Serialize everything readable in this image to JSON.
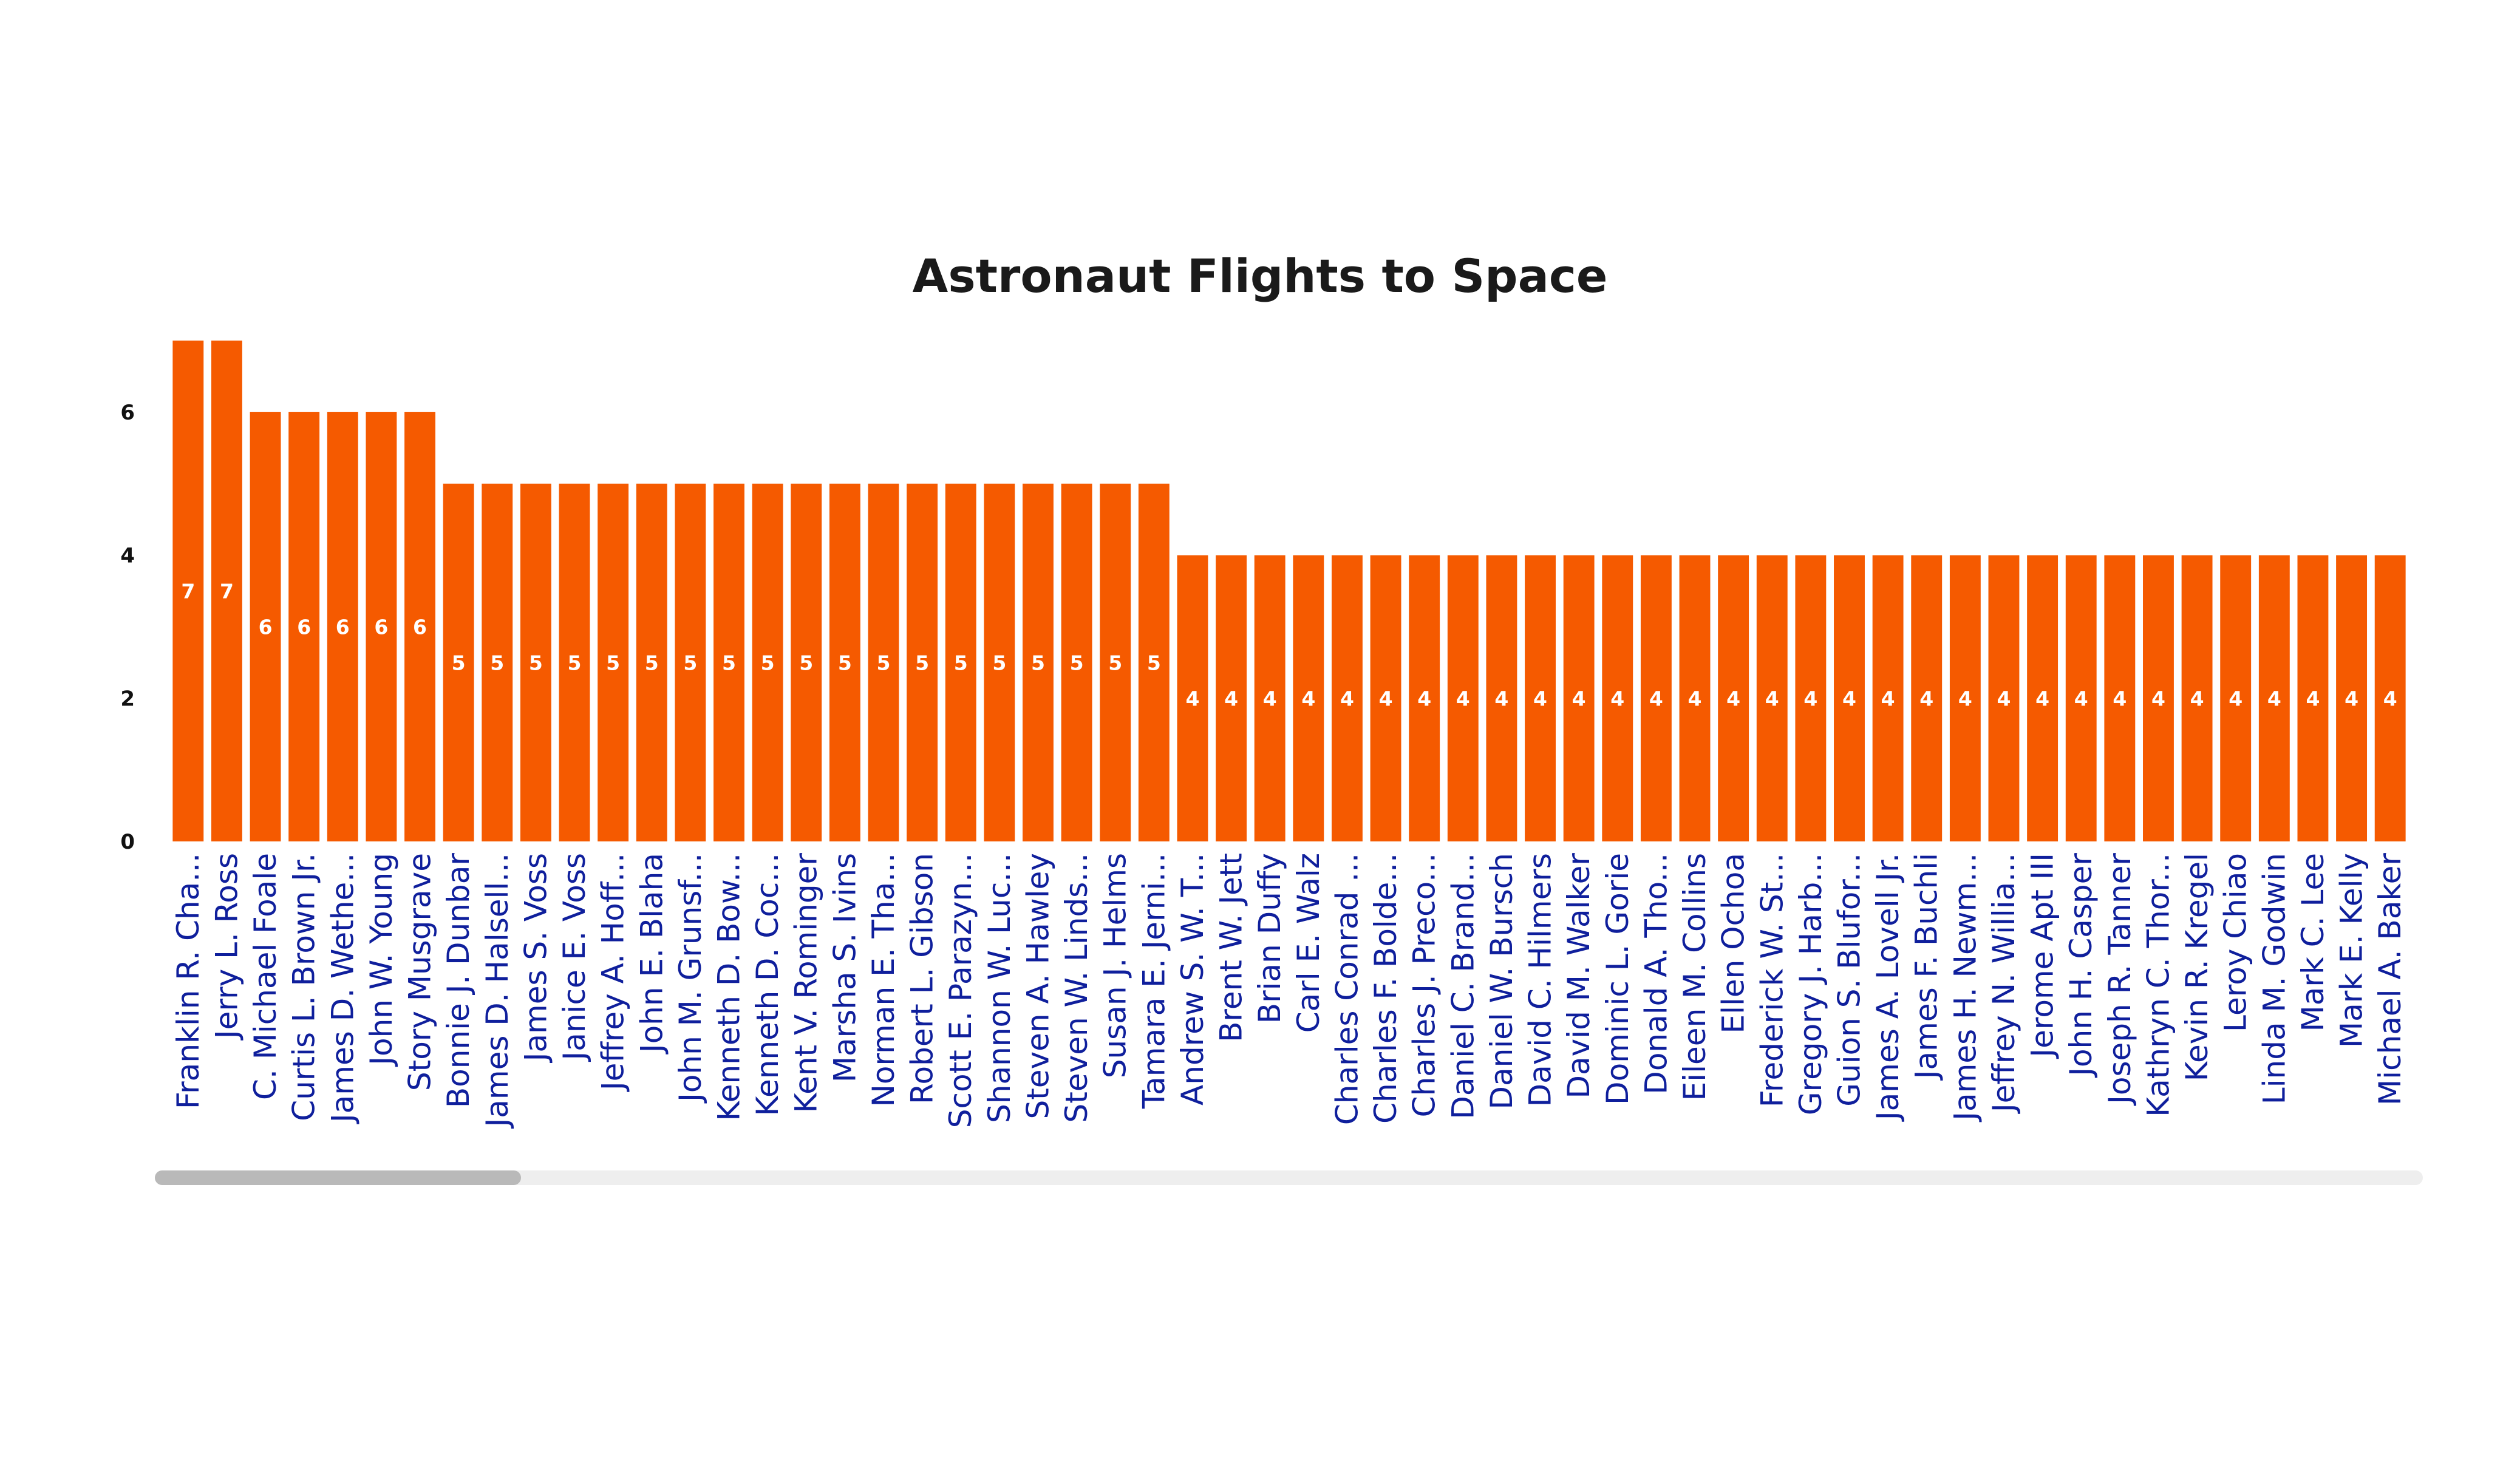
{
  "title": "Astronaut Flights to Space",
  "colors": {
    "bar": "#f55a00",
    "x_tick_label": "#0f1f9c",
    "data_label": "#ffffff",
    "y_tick_label": "#111111"
  },
  "chart_data": {
    "type": "bar",
    "title": "Astronaut Flights to Space",
    "xlabel": "",
    "ylabel": "",
    "ylim": [
      0,
      7
    ],
    "yticks": [
      0,
      2,
      4,
      6
    ],
    "grid": false,
    "legend": "none",
    "categories": [
      "Franklin R. Cha...",
      "Jerry L. Ross",
      "C. Michael Foale",
      "Curtis L. Brown Jr.",
      "James D. Wethe...",
      "John W. Young",
      "Story Musgrave",
      "Bonnie J. Dunbar",
      "James D. Halsell...",
      "James S. Voss",
      "Janice E. Voss",
      "Jeffrey A. Hoff...",
      "John E. Blaha",
      "John M. Grunsf...",
      "Kenneth D. Bow...",
      "Kenneth D. Coc...",
      "Kent V. Rominger",
      "Marsha S. Ivins",
      "Norman E. Tha...",
      "Robert L. Gibson",
      "Scott E. Parazyn...",
      "Shannon W. Luc...",
      "Steven A. Hawley",
      "Steven W. Linds...",
      "Susan J. Helms",
      "Tamara E. Jerni...",
      "Andrew S. W. T...",
      "Brent W. Jett",
      "Brian Duffy",
      "Carl E. Walz",
      "Charles Conrad ...",
      "Charles F. Bolde...",
      "Charles J. Preco...",
      "Daniel C. Brand...",
      "Daniel W. Bursch",
      "David C. Hilmers",
      "David M. Walker",
      "Dominic L. Gorie",
      "Donald A. Tho...",
      "Eileen M. Collins",
      "Ellen Ochoa",
      "Frederick W. St...",
      "Gregory J. Harb...",
      "Guion S. Blufor...",
      "James A. Lovell Jr.",
      "James F. Buchli",
      "James H. Newm...",
      "Jeffrey N. Willia...",
      "Jerome Apt III",
      "John H. Casper",
      "Joseph R. Tanner",
      "Kathryn C. Thor...",
      "Kevin R. Kregel",
      "Leroy Chiao",
      "Linda M. Godwin",
      "Mark C. Lee",
      "Mark E. Kelly",
      "Michael A. Baker"
    ],
    "values": [
      7,
      7,
      6,
      6,
      6,
      6,
      6,
      5,
      5,
      5,
      5,
      5,
      5,
      5,
      5,
      5,
      5,
      5,
      5,
      5,
      5,
      5,
      5,
      5,
      5,
      5,
      4,
      4,
      4,
      4,
      4,
      4,
      4,
      4,
      4,
      4,
      4,
      4,
      4,
      4,
      4,
      4,
      4,
      4,
      4,
      4,
      4,
      4,
      4,
      4,
      4,
      4,
      4,
      4,
      4,
      4,
      4,
      4
    ],
    "data_labels": true
  }
}
